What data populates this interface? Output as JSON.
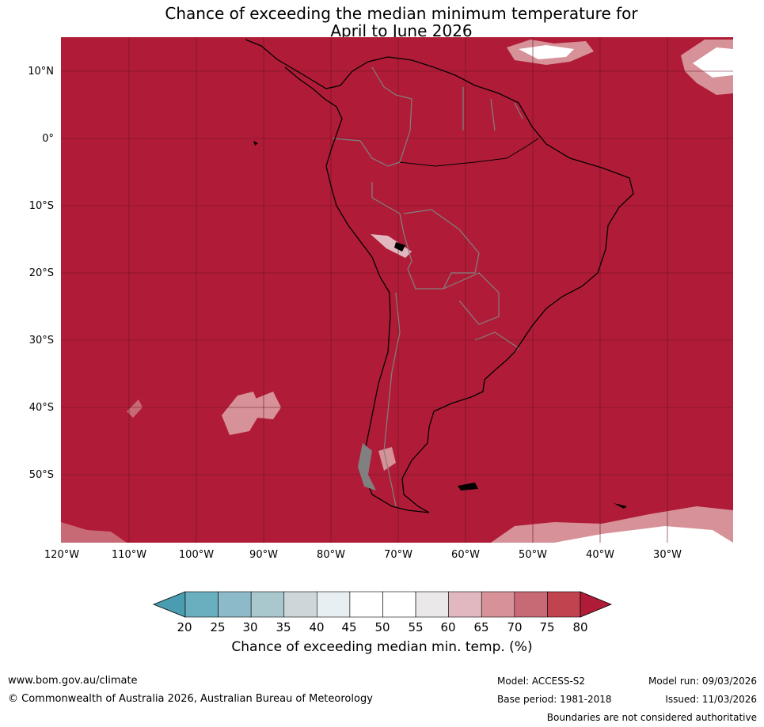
{
  "title": {
    "line1": "Chance of exceeding the median minimum temperature for",
    "line2": "April to June 2026"
  },
  "map": {
    "region": "South America",
    "background_color": "#B01C37",
    "land_outline_color": "#000000",
    "border_color": "#808080",
    "lat_labels": [
      "10°N",
      "0°",
      "10°S",
      "20°S",
      "30°S",
      "40°S",
      "50°S"
    ],
    "lon_labels": [
      "120°W",
      "110°W",
      "100°W",
      "90°W",
      "80°W",
      "70°W",
      "60°W",
      "50°W",
      "40°W",
      "30°W"
    ]
  },
  "colorbar": {
    "title": "Chance of exceeding median min. temp. (%)",
    "ticks": [
      "20",
      "25",
      "30",
      "35",
      "40",
      "45",
      "50",
      "55",
      "60",
      "65",
      "70",
      "75",
      "80"
    ],
    "under_color": "#4A9DB0",
    "over_color": "#B01C37",
    "colors": [
      "#6AAFC0",
      "#8DBAC8",
      "#A8C8CE",
      "#CDD7DA",
      "#E8EFF2",
      "#FFFFFF",
      "#FFFFFF",
      "#EAE8E9",
      "#E2B8C0",
      "#D69298",
      "#C86A76",
      "#C0434F"
    ]
  },
  "footer": {
    "website": "www.bom.gov.au/climate",
    "copyright": "© Commonwealth of Australia 2026, Australian Bureau of Meteorology",
    "model": "Model: ACCESS-S2",
    "base_period": "Base period: 1981-2018",
    "model_run": "Model run: 09/03/2026",
    "issued": "Issued: 11/03/2026",
    "disclaimer": "Boundaries are not considered authoritative"
  }
}
